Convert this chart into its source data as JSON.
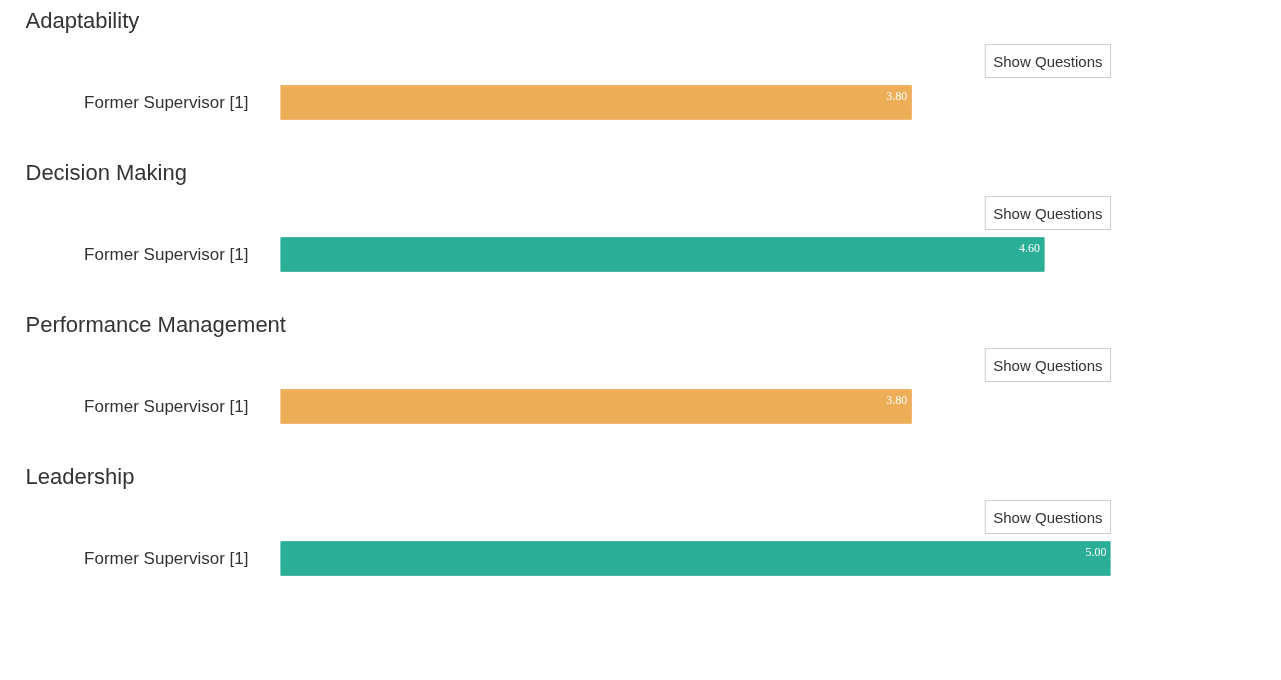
{
  "chart_data": [
    {
      "type": "bar",
      "orientation": "horizontal",
      "title": "Adaptability",
      "categories": [
        "Former Supervisor [1]"
      ],
      "values": [
        3.8
      ],
      "value_labels": [
        "3.80"
      ],
      "color": "#eead57",
      "tick_labels": "y",
      "annotations": [
        "Show Questions"
      ]
    },
    {
      "type": "bar",
      "orientation": "horizontal",
      "title": "Decision Making",
      "categories": [
        "Former Supervisor [1]"
      ],
      "values": [
        4.6
      ],
      "value_labels": [
        "4.60"
      ],
      "color": "#2bae98",
      "tick_labels": "y",
      "annotations": [
        "Show Questions"
      ]
    },
    {
      "type": "bar",
      "orientation": "horizontal",
      "title": "Performance Management",
      "categories": [
        "Former Supervisor [1]"
      ],
      "values": [
        3.8
      ],
      "value_labels": [
        "3.80"
      ],
      "color": "#eead57",
      "tick_labels": "y",
      "annotations": [
        "Show Questions"
      ]
    },
    {
      "type": "bar",
      "orientation": "horizontal",
      "title": "Leadership",
      "categories": [
        "Former Supervisor [1]"
      ],
      "values": [
        5.0
      ],
      "value_labels": [
        "5.00"
      ],
      "color": "#2bae98",
      "tick_labels": "y",
      "annotations": [
        "Show Questions"
      ]
    }
  ]
}
